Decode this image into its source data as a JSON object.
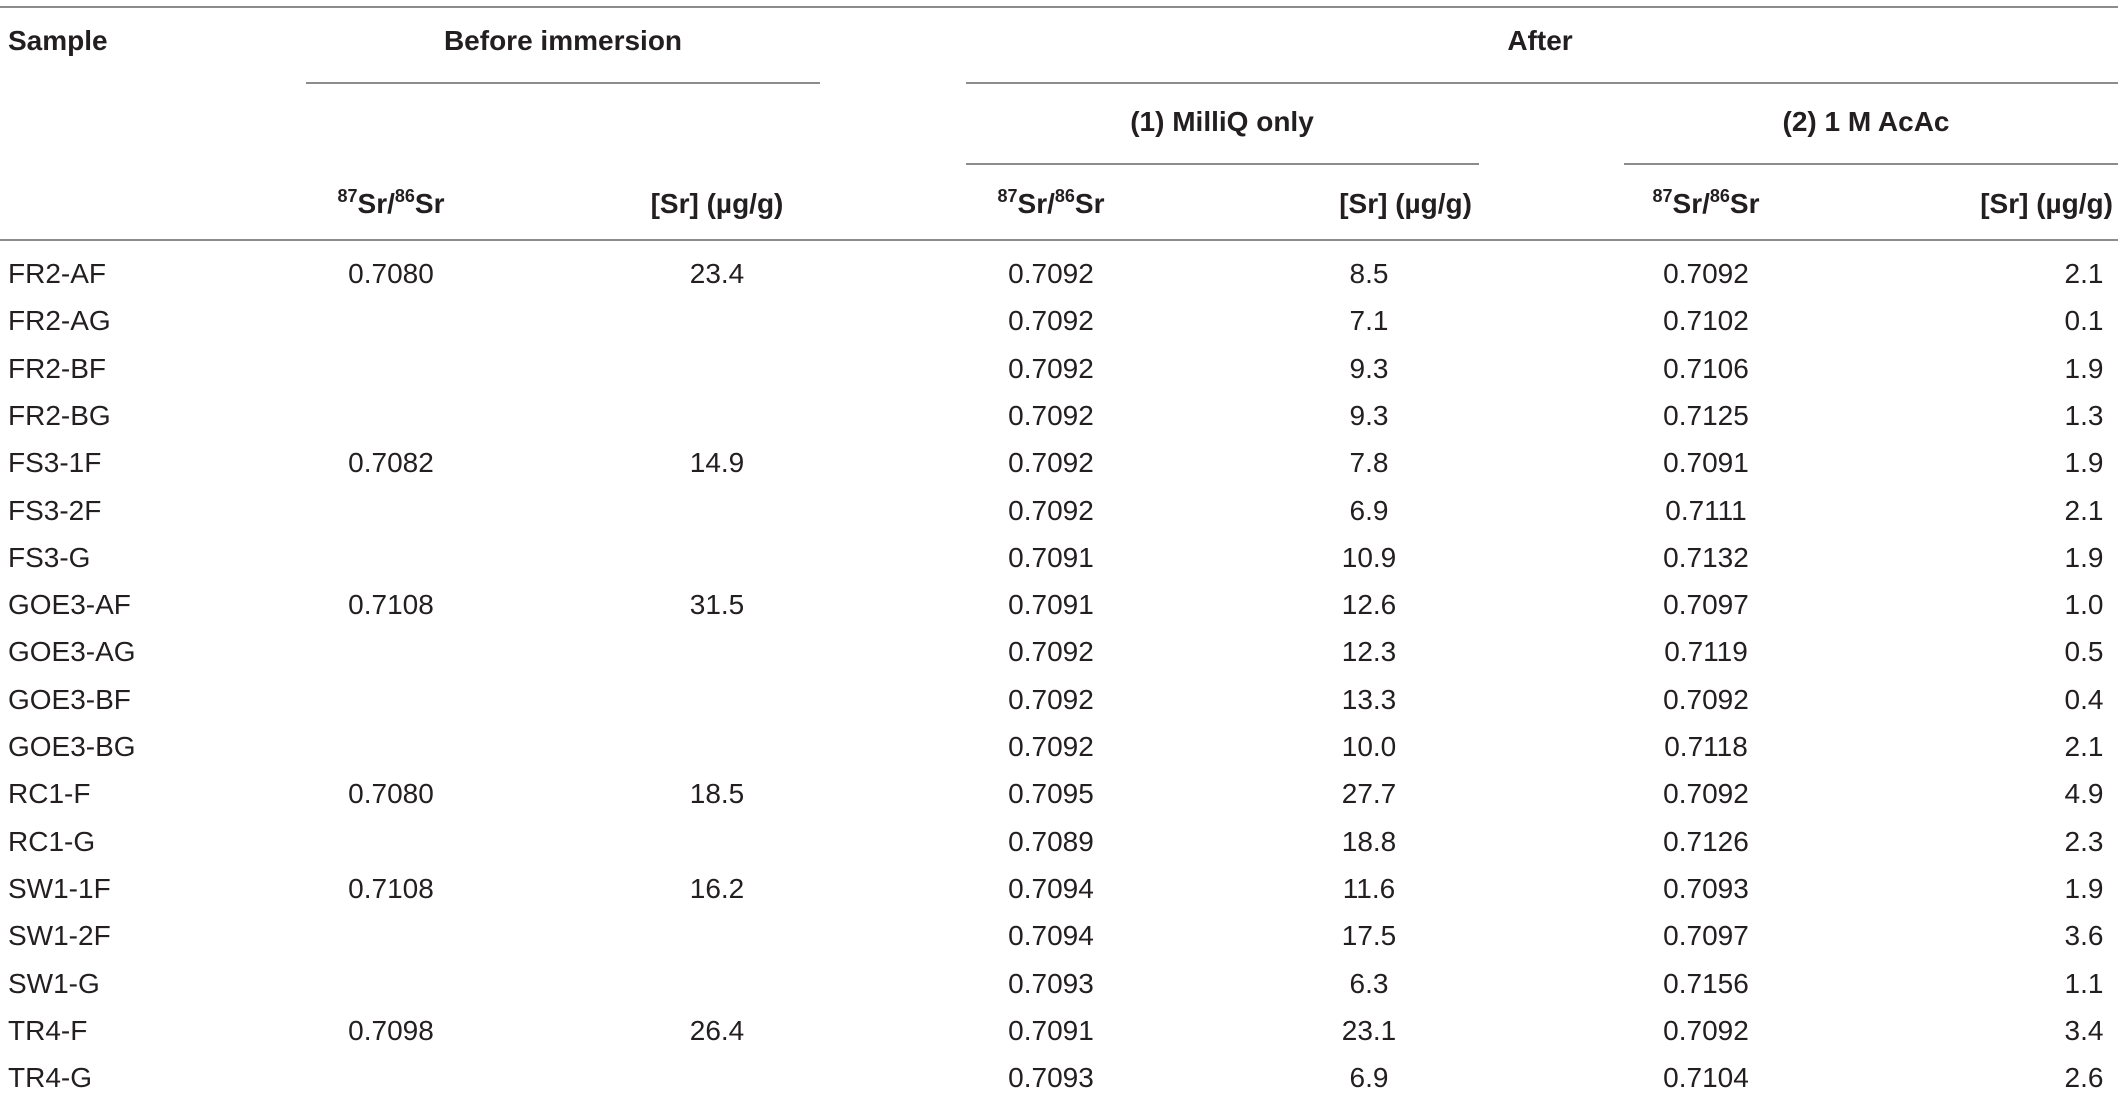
{
  "table": {
    "headers": {
      "sample": "Sample",
      "before_immersion": "Before immersion",
      "after": "After",
      "milliq_only": "(1) MilliQ only",
      "acac": "(2) 1 M AcAc",
      "sr_iso_sup1": "87",
      "sr_iso_mid": "Sr/",
      "sr_iso_sup2": "86",
      "sr_iso_end": "Sr",
      "sr_conc": "[Sr] (µg/g)"
    },
    "rows": [
      {
        "sample": "FR2-AF",
        "before_ratio": "0.7080",
        "before_sr": "23.4",
        "milliq_ratio": "0.7092",
        "milliq_sr": "8.5",
        "acac_ratio": "0.7092",
        "acac_sr": "2.1"
      },
      {
        "sample": "FR2-AG",
        "before_ratio": "",
        "before_sr": "",
        "milliq_ratio": "0.7092",
        "milliq_sr": "7.1",
        "acac_ratio": "0.7102",
        "acac_sr": "0.1"
      },
      {
        "sample": "FR2-BF",
        "before_ratio": "",
        "before_sr": "",
        "milliq_ratio": "0.7092",
        "milliq_sr": "9.3",
        "acac_ratio": "0.7106",
        "acac_sr": "1.9"
      },
      {
        "sample": "FR2-BG",
        "before_ratio": "",
        "before_sr": "",
        "milliq_ratio": "0.7092",
        "milliq_sr": "9.3",
        "acac_ratio": "0.7125",
        "acac_sr": "1.3"
      },
      {
        "sample": "FS3-1F",
        "before_ratio": "0.7082",
        "before_sr": "14.9",
        "milliq_ratio": "0.7092",
        "milliq_sr": "7.8",
        "acac_ratio": "0.7091",
        "acac_sr": "1.9"
      },
      {
        "sample": "FS3-2F",
        "before_ratio": "",
        "before_sr": "",
        "milliq_ratio": "0.7092",
        "milliq_sr": "6.9",
        "acac_ratio": "0.7111",
        "acac_sr": "2.1"
      },
      {
        "sample": "FS3-G",
        "before_ratio": "",
        "before_sr": "",
        "milliq_ratio": "0.7091",
        "milliq_sr": "10.9",
        "acac_ratio": "0.7132",
        "acac_sr": "1.9"
      },
      {
        "sample": "GOE3-AF",
        "before_ratio": "0.7108",
        "before_sr": "31.5",
        "milliq_ratio": "0.7091",
        "milliq_sr": "12.6",
        "acac_ratio": "0.7097",
        "acac_sr": "1.0"
      },
      {
        "sample": "GOE3-AG",
        "before_ratio": "",
        "before_sr": "",
        "milliq_ratio": "0.7092",
        "milliq_sr": "12.3",
        "acac_ratio": "0.7119",
        "acac_sr": "0.5"
      },
      {
        "sample": "GOE3-BF",
        "before_ratio": "",
        "before_sr": "",
        "milliq_ratio": "0.7092",
        "milliq_sr": "13.3",
        "acac_ratio": "0.7092",
        "acac_sr": "0.4"
      },
      {
        "sample": "GOE3-BG",
        "before_ratio": "",
        "before_sr": "",
        "milliq_ratio": "0.7092",
        "milliq_sr": "10.0",
        "acac_ratio": "0.7118",
        "acac_sr": "2.1"
      },
      {
        "sample": "RC1-F",
        "before_ratio": "0.7080",
        "before_sr": "18.5",
        "milliq_ratio": "0.7095",
        "milliq_sr": "27.7",
        "acac_ratio": "0.7092",
        "acac_sr": "4.9"
      },
      {
        "sample": "RC1-G",
        "before_ratio": "",
        "before_sr": "",
        "milliq_ratio": "0.7089",
        "milliq_sr": "18.8",
        "acac_ratio": "0.7126",
        "acac_sr": "2.3"
      },
      {
        "sample": "SW1-1F",
        "before_ratio": "0.7108",
        "before_sr": "16.2",
        "milliq_ratio": "0.7094",
        "milliq_sr": "11.6",
        "acac_ratio": "0.7093",
        "acac_sr": "1.9"
      },
      {
        "sample": "SW1-2F",
        "before_ratio": "",
        "before_sr": "",
        "milliq_ratio": "0.7094",
        "milliq_sr": "17.5",
        "acac_ratio": "0.7097",
        "acac_sr": "3.6"
      },
      {
        "sample": "SW1-G",
        "before_ratio": "",
        "before_sr": "",
        "milliq_ratio": "0.7093",
        "milliq_sr": "6.3",
        "acac_ratio": "0.7156",
        "acac_sr": "1.1"
      },
      {
        "sample": "TR4-F",
        "before_ratio": "0.7098",
        "before_sr": "26.4",
        "milliq_ratio": "0.7091",
        "milliq_sr": "23.1",
        "acac_ratio": "0.7092",
        "acac_sr": "3.4"
      },
      {
        "sample": "TR4-G",
        "before_ratio": "",
        "before_sr": "",
        "milliq_ratio": "0.7093",
        "milliq_sr": "6.9",
        "acac_ratio": "0.7104",
        "acac_sr": "2.6"
      }
    ]
  }
}
